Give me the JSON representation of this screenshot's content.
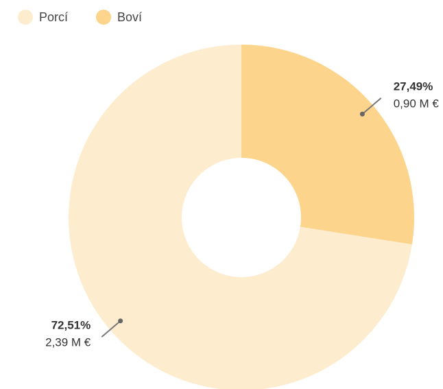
{
  "chart_data": {
    "type": "pie",
    "categories": [
      "Porcí",
      "Boví"
    ],
    "values": [
      72.51,
      27.49
    ],
    "value_labels": [
      "72,51%",
      "27,49%"
    ],
    "amount_labels": [
      "2,39 M €",
      "0,90 M €"
    ],
    "colors": [
      "#fdecce",
      "#fcd48c"
    ],
    "donut": true,
    "legend": "top-left"
  }
}
